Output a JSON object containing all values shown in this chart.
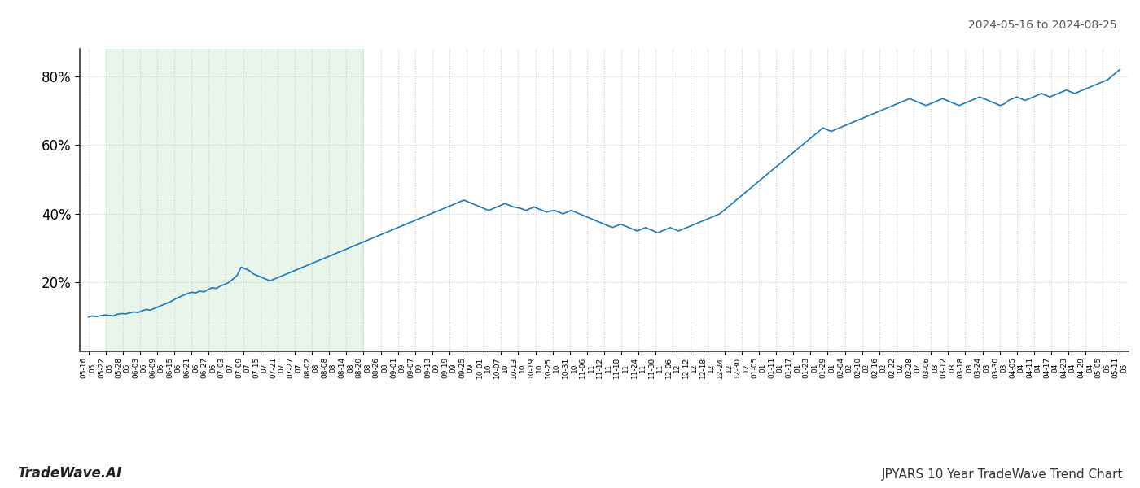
{
  "title_right": "2024-05-16 to 2024-08-25",
  "footer_left": "TradeWave.AI",
  "footer_right": "JPYARS 10 Year TradeWave Trend Chart",
  "line_color": "#1a7abf",
  "line_width": 1.2,
  "shade_color": "#d4edda",
  "shade_alpha": 0.55,
  "background_color": "#ffffff",
  "grid_color": "#cccccc",
  "ylim": [
    0,
    88
  ],
  "yticks": [
    20,
    40,
    60,
    80
  ],
  "shade_start_label": "05-22",
  "shade_end_label": "08-20",
  "x_labels": [
    "05-16",
    "05-22",
    "05-28",
    "06-03",
    "06-09",
    "06-15",
    "06-21",
    "06-27",
    "07-03",
    "07-09",
    "07-15",
    "07-21",
    "07-27",
    "08-02",
    "08-08",
    "08-14",
    "08-20",
    "08-26",
    "09-01",
    "09-07",
    "09-13",
    "09-19",
    "09-25",
    "10-01",
    "10-07",
    "10-13",
    "10-19",
    "10-25",
    "10-31",
    "11-06",
    "11-12",
    "11-18",
    "11-24",
    "11-30",
    "12-06",
    "12-12",
    "12-18",
    "12-24",
    "12-30",
    "01-05",
    "01-11",
    "01-17",
    "01-23",
    "01-29",
    "02-04",
    "02-10",
    "02-16",
    "02-22",
    "02-28",
    "03-06",
    "03-12",
    "03-18",
    "03-24",
    "03-30",
    "04-05",
    "04-11",
    "04-17",
    "04-23",
    "04-29",
    "05-05",
    "05-11"
  ],
  "x_years": [
    "05",
    "05",
    "05",
    "06",
    "06",
    "06",
    "06",
    "06",
    "07",
    "07",
    "07",
    "07",
    "07",
    "08",
    "08",
    "08",
    "08",
    "08",
    "09",
    "09",
    "09",
    "09",
    "09",
    "10",
    "10",
    "10",
    "10",
    "10",
    "10",
    "11",
    "11",
    "11",
    "11",
    "11",
    "12",
    "12",
    "12",
    "12",
    "12",
    "01",
    "01",
    "01",
    "01",
    "01",
    "02",
    "02",
    "02",
    "02",
    "02",
    "03",
    "03",
    "03",
    "03",
    "03",
    "04",
    "04",
    "04",
    "04",
    "04",
    "05",
    "05"
  ],
  "values": [
    10.0,
    10.3,
    10.1,
    10.4,
    10.6,
    10.5,
    10.3,
    10.8,
    11.0,
    10.9,
    11.2,
    11.5,
    11.3,
    11.8,
    12.2,
    12.0,
    12.5,
    13.0,
    13.5,
    14.0,
    14.5,
    15.2,
    15.8,
    16.3,
    16.8,
    17.2,
    17.0,
    17.5,
    17.3,
    18.0,
    18.5,
    18.3,
    19.0,
    19.5,
    20.0,
    21.0,
    22.0,
    24.5,
    24.0,
    23.5,
    22.5,
    22.0,
    21.5,
    21.0,
    20.5,
    21.0,
    21.5,
    22.0,
    22.5,
    23.0,
    23.5,
    24.0,
    24.5,
    25.0,
    25.5,
    26.0,
    26.5,
    27.0,
    27.5,
    28.0,
    28.5,
    29.0,
    29.5,
    30.0,
    30.5,
    31.0,
    31.5,
    32.0,
    32.5,
    33.0,
    33.5,
    34.0,
    34.5,
    35.0,
    35.5,
    36.0,
    36.5,
    37.0,
    37.5,
    38.0,
    38.5,
    39.0,
    39.5,
    40.0,
    40.5,
    41.0,
    41.5,
    42.0,
    42.5,
    43.0,
    43.5,
    44.0,
    43.5,
    43.0,
    42.5,
    42.0,
    41.5,
    41.0,
    41.5,
    42.0,
    42.5,
    43.0,
    42.5,
    42.0,
    41.8,
    41.5,
    41.0,
    41.5,
    42.0,
    41.5,
    41.0,
    40.5,
    40.8,
    41.0,
    40.5,
    40.0,
    40.5,
    41.0,
    40.5,
    40.0,
    39.5,
    39.0,
    38.5,
    38.0,
    37.5,
    37.0,
    36.5,
    36.0,
    36.5,
    37.0,
    36.5,
    36.0,
    35.5,
    35.0,
    35.5,
    36.0,
    35.5,
    35.0,
    34.5,
    35.0,
    35.5,
    36.0,
    35.5,
    35.0,
    35.5,
    36.0,
    36.5,
    37.0,
    37.5,
    38.0,
    38.5,
    39.0,
    39.5,
    40.0,
    41.0,
    42.0,
    43.0,
    44.0,
    45.0,
    46.0,
    47.0,
    48.0,
    49.0,
    50.0,
    51.0,
    52.0,
    53.0,
    54.0,
    55.0,
    56.0,
    57.0,
    58.0,
    59.0,
    60.0,
    61.0,
    62.0,
    63.0,
    64.0,
    65.0,
    64.5,
    64.0,
    64.5,
    65.0,
    65.5,
    66.0,
    66.5,
    67.0,
    67.5,
    68.0,
    68.5,
    69.0,
    69.5,
    70.0,
    70.5,
    71.0,
    71.5,
    72.0,
    72.5,
    73.0,
    73.5,
    73.0,
    72.5,
    72.0,
    71.5,
    72.0,
    72.5,
    73.0,
    73.5,
    73.0,
    72.5,
    72.0,
    71.5,
    72.0,
    72.5,
    73.0,
    73.5,
    74.0,
    73.5,
    73.0,
    72.5,
    72.0,
    71.5,
    72.0,
    73.0,
    73.5,
    74.0,
    73.5,
    73.0,
    73.5,
    74.0,
    74.5,
    75.0,
    74.5,
    74.0,
    74.5,
    75.0,
    75.5,
    76.0,
    75.5,
    75.0,
    75.5,
    76.0,
    76.5,
    77.0,
    77.5,
    78.0,
    78.5,
    79.0,
    80.0,
    81.0,
    82.0
  ]
}
